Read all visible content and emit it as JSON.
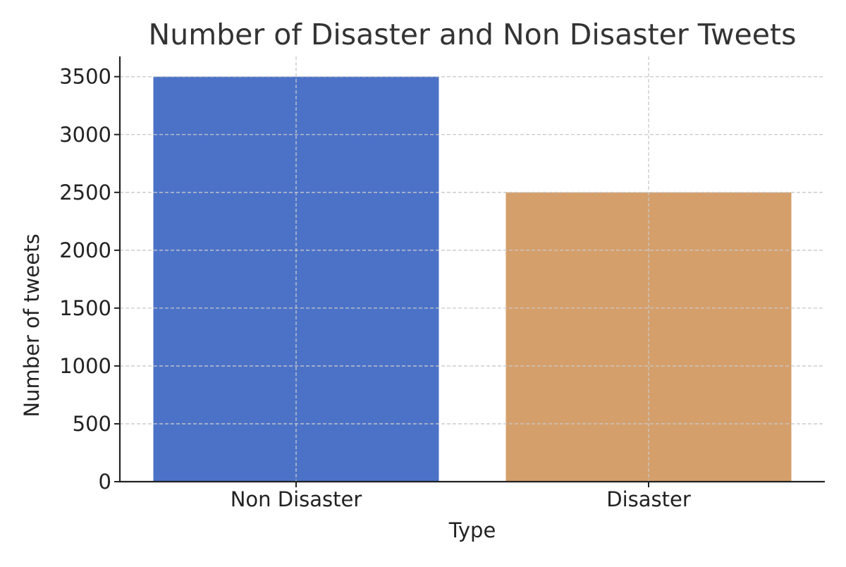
{
  "chart_data": {
    "type": "bar",
    "title": "Number of Disaster and Non Disaster Tweets",
    "xlabel": "Type",
    "ylabel": "Number of tweets",
    "categories": [
      "Non Disaster",
      "Disaster"
    ],
    "values": [
      3500,
      2500
    ],
    "colors": [
      "#4c72c8",
      "#d59f6b"
    ],
    "ylim": [
      0,
      3675
    ],
    "yticks": [
      0,
      500,
      1000,
      1500,
      2000,
      2500,
      3000,
      3500
    ],
    "grid": true
  }
}
